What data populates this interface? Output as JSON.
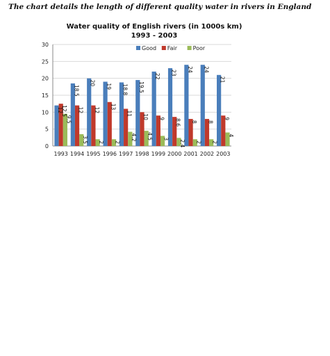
{
  "page": {
    "caption": "The chart details the length of different quality water in rivers in England"
  },
  "chart_data": {
    "type": "bar",
    "title": "Water quality of English rivers (in 1000s km)",
    "subtitle": "1993 - 2003",
    "xlabel": "",
    "ylabel": "",
    "ylim": [
      0,
      30
    ],
    "yticks": [
      0,
      5,
      10,
      15,
      20,
      25,
      30
    ],
    "grid": true,
    "legend_position": "top-right",
    "categories": [
      "1993",
      "1994",
      "1995",
      "1996",
      "1997",
      "1998",
      "1999",
      "2000",
      "2001",
      "2002",
      "2003"
    ],
    "series": [
      {
        "name": "Good",
        "color": "#4a7ebb",
        "values": [
          12,
          18.5,
          20,
          19,
          18.8,
          19.5,
          22,
          23,
          24,
          24,
          21
        ],
        "labels": [
          "12",
          "18.5",
          "20",
          "19",
          "18.8",
          "19.5",
          "22",
          "23",
          "24",
          "24",
          "21"
        ]
      },
      {
        "name": "Fair",
        "color": "#c0392b",
        "values": [
          12.5,
          12,
          12,
          13,
          11,
          10,
          9,
          8.6,
          8,
          8,
          9
        ],
        "labels": [
          "12.5",
          "12",
          "12",
          "13",
          "11",
          "10",
          "9",
          "8.6",
          "8",
          "8",
          "9"
        ]
      },
      {
        "name": "Poor",
        "color": "#9bbb59",
        "values": [
          9.5,
          3.5,
          2,
          2,
          4.2,
          4.5,
          3,
          2.4,
          2,
          2,
          4
        ],
        "labels": [
          "9.5",
          "3.5",
          "2",
          "2",
          "4.2",
          "4.5",
          "3",
          "2.4",
          "2",
          "2",
          "4"
        ]
      }
    ]
  }
}
